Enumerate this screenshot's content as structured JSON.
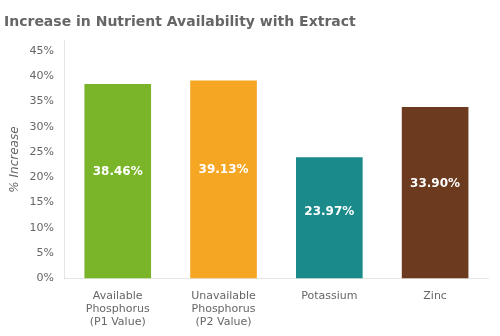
{
  "chart_data": {
    "type": "bar",
    "title": "Increase in Nutrient Availability with Extract",
    "categories": [
      "Available\nPhosphorus\n(P1 Value)",
      "Unavailable\nPhosphorus\n(P2 Value)",
      "Potassium",
      "Zinc"
    ],
    "values": [
      38.46,
      39.13,
      23.97,
      33.9
    ],
    "value_labels": [
      "38.46%",
      "39.13%",
      "23.97%",
      "33.90%"
    ],
    "data_labels": true,
    "colors": [
      "#7ab429",
      "#f5a623",
      "#1a8a8a",
      "#6b3a1f"
    ],
    "ylabel": "% Increase",
    "ylim": [
      0,
      47
    ],
    "yticks": [
      {
        "value": 0,
        "label": "0%"
      },
      {
        "value": 5,
        "label": "5%"
      },
      {
        "value": 10,
        "label": "10%"
      },
      {
        "value": 15,
        "label": "15%"
      },
      {
        "value": 20,
        "label": "20%"
      },
      {
        "value": 25,
        "label": "25%"
      },
      {
        "value": 30,
        "label": "30%"
      },
      {
        "value": 35,
        "label": "35%"
      },
      {
        "value": 40,
        "label": "40%"
      },
      {
        "value": 45,
        "label": "45%"
      }
    ],
    "grid": false
  }
}
